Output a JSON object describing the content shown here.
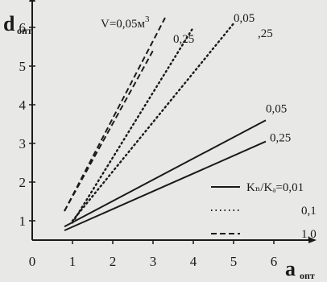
{
  "chart_data": {
    "type": "line",
    "ylabel": "d",
    "ylabel_sub": "опт",
    "xlabel": "a",
    "xlabel_sub": "опт",
    "xlim": [
      0,
      7
    ],
    "ylim": [
      0.5,
      6.5
    ],
    "x_ticks": [
      0,
      1,
      2,
      3,
      4,
      5,
      6
    ],
    "y_ticks": [
      1,
      2,
      3,
      4,
      5,
      6
    ],
    "legend_title": "Kₙ/Kₐ",
    "legend_placement": "lower-right",
    "ink_color": "#1a1a1a",
    "paper_color": "#e8e8e6",
    "series": [
      {
        "name": "0,01",
        "style": "solid",
        "volume": "0,05",
        "x": [
          0.8,
          5.8
        ],
        "y": [
          0.85,
          3.6
        ]
      },
      {
        "name": "0,01",
        "style": "solid",
        "volume": "0,25",
        "x": [
          0.8,
          5.8
        ],
        "y": [
          0.75,
          3.05
        ]
      },
      {
        "name": "0,1",
        "style": "dotted",
        "volume": "0,05",
        "x": [
          1.0,
          5.0
        ],
        "y": [
          1.0,
          6.1
        ]
      },
      {
        "name": "0,1",
        "style": "dotted",
        "volume": "0,25",
        "x": [
          1.0,
          4.0
        ],
        "y": [
          0.95,
          6.0
        ]
      },
      {
        "name": "1,0",
        "style": "dashed",
        "volume": "0,05",
        "x": [
          0.8,
          3.3
        ],
        "y": [
          1.25,
          6.25
        ]
      },
      {
        "name": "1,0",
        "style": "dashed",
        "volume": "0,25",
        "x": [
          0.8,
          3.0
        ],
        "y": [
          1.25,
          5.4
        ]
      }
    ],
    "annotations": [
      {
        "text": "V=0,05м",
        "superscript": "3",
        "x": 1.7,
        "y": 6.0
      },
      {
        "text": "0,25",
        "x": 3.5,
        "y": 5.6
      },
      {
        "text": "0,05",
        "x": 5.0,
        "y": 6.15
      },
      {
        "text": ",25",
        "x": 5.6,
        "y": 5.75
      },
      {
        "text": "0,05",
        "x": 5.8,
        "y": 3.8
      },
      {
        "text": "0,25",
        "x": 5.9,
        "y": 3.05
      }
    ]
  }
}
